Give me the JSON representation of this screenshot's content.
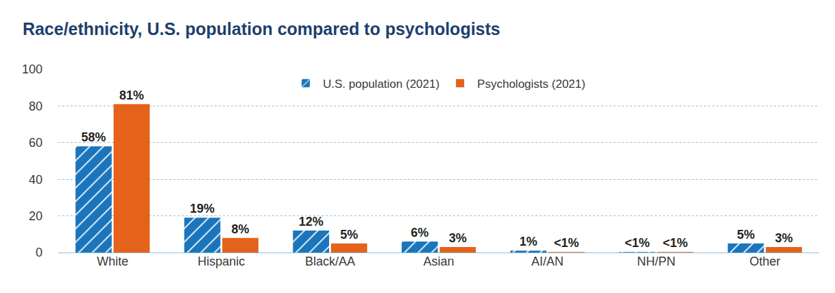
{
  "chart_data": {
    "type": "bar",
    "title": "Race/ethnicity, U.S. population compared to psychologists",
    "categories": [
      "White",
      "Hispanic",
      "Black/AA",
      "Asian",
      "AI/AN",
      "NH/PN",
      "Other"
    ],
    "series": [
      {
        "name": "U.S. population (2021)",
        "color": "#1b75bc",
        "marker": "hatched",
        "values": [
          58,
          19,
          12,
          6,
          1,
          0.3,
          5
        ],
        "value_labels": [
          "58%",
          "19%",
          "12%",
          "6%",
          "1%",
          "<1%",
          "5%"
        ]
      },
      {
        "name": "Psychologists (2021)",
        "color": "#e4621a",
        "values": [
          81,
          8,
          5,
          3,
          0.3,
          0.3,
          3
        ],
        "value_labels": [
          "81%",
          "8%",
          "5%",
          "3%",
          "<1%",
          "<1%",
          "3%"
        ]
      }
    ],
    "ylim": [
      0,
      100
    ],
    "yticks": [
      0,
      20,
      40,
      60,
      80,
      100
    ],
    "grid": true,
    "legend": "top",
    "data_labels": true
  }
}
